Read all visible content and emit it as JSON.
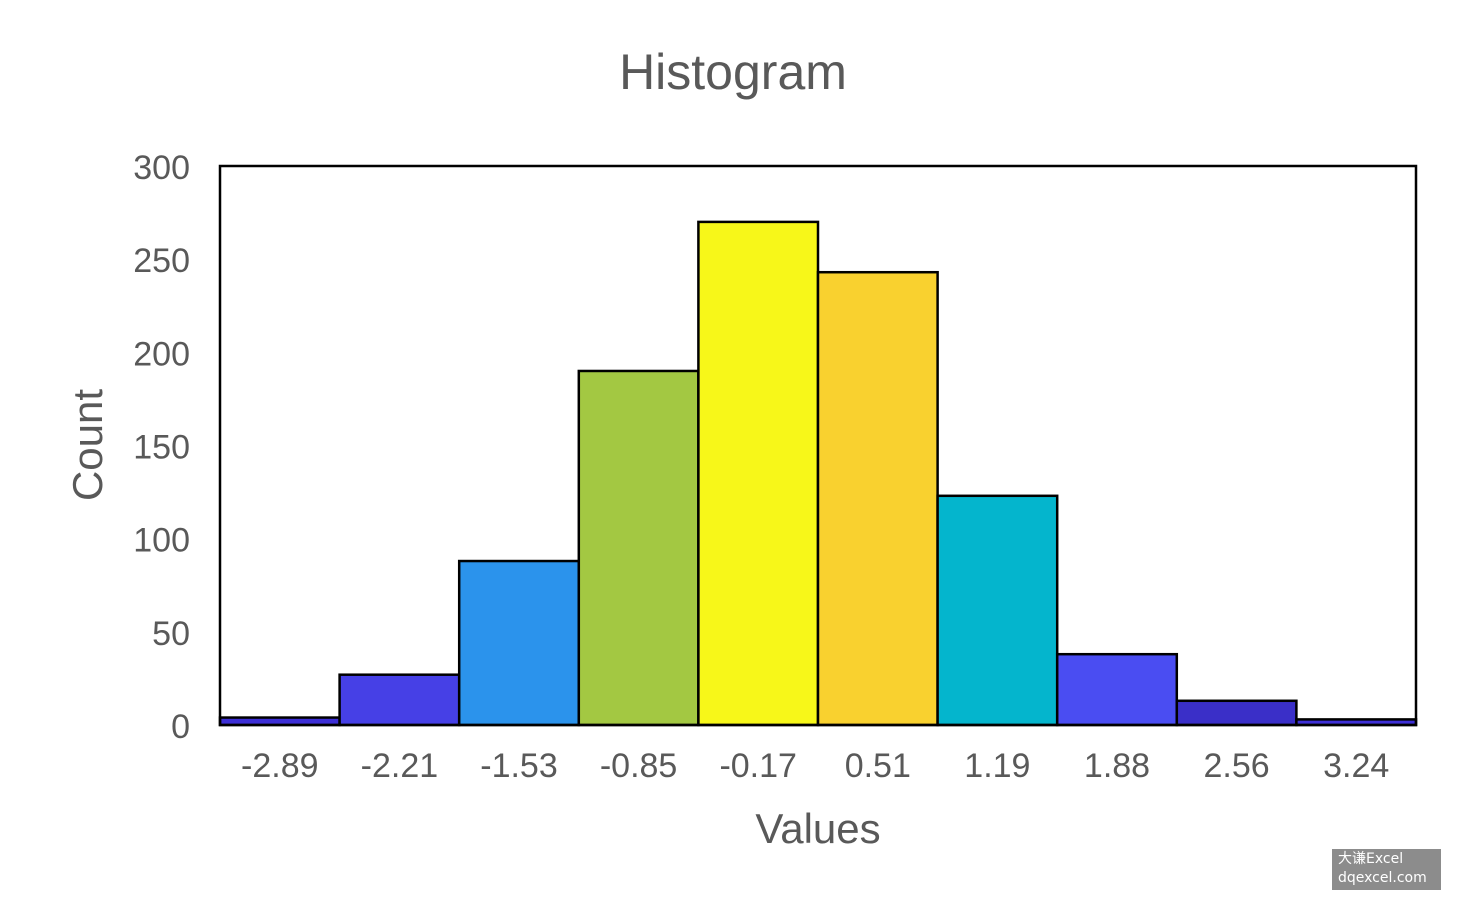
{
  "chart_data": {
    "type": "bar",
    "title": "Histogram",
    "xlabel": "Values",
    "ylabel": "Count",
    "ylim": [
      0,
      300
    ],
    "yticks": [
      "0",
      "50",
      "100",
      "150",
      "200",
      "250",
      "300"
    ],
    "categories": [
      "-2.89",
      "-2.21",
      "-1.53",
      "-0.85",
      "-0.17",
      "0.51",
      "1.19",
      "1.88",
      "2.56",
      "3.24"
    ],
    "values": [
      4,
      27,
      88,
      190,
      270,
      243,
      123,
      38,
      13,
      3
    ],
    "colors": [
      "#3d2fd6",
      "#4640e6",
      "#2b93ec",
      "#a3c842",
      "#f7f719",
      "#f9d12f",
      "#04b5cd",
      "#4a4df2",
      "#3a2fc8",
      "#3d2fd6"
    ],
    "grid": false,
    "legend": "none"
  },
  "watermark": {
    "line1": "大谦Excel",
    "line2": "dqexcel.com"
  }
}
